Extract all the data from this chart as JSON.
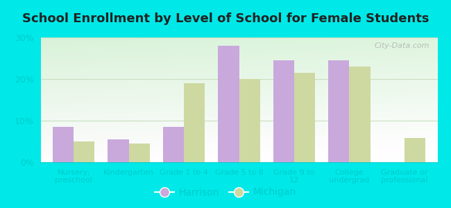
{
  "title": "School Enrollment by Level of School for Female Students",
  "categories": [
    "Nursery,\npreschool",
    "Kindergarten",
    "Grade 1 to 4",
    "Grade 5 to 8",
    "Grade 9 to\n12",
    "College\nundergrad",
    "Graduate or\nprofessional"
  ],
  "harrison": [
    8.5,
    5.5,
    8.5,
    28.0,
    24.5,
    24.5,
    0.0
  ],
  "michigan": [
    5.0,
    4.5,
    19.0,
    20.0,
    21.5,
    23.0,
    5.8
  ],
  "harrison_color": "#c9a8dc",
  "michigan_color": "#cdd9a0",
  "background_outer": "#00e8e8",
  "ylim": [
    0,
    30
  ],
  "yticks": [
    0,
    10,
    20,
    30
  ],
  "ytick_labels": [
    "0%",
    "10%",
    "20%",
    "30%"
  ],
  "title_fontsize": 13,
  "legend_labels": [
    "Harrison",
    "Michigan"
  ],
  "bar_width": 0.38,
  "watermark": "City-Data.com",
  "tick_label_color": "#00cccc",
  "grid_color": "#c8dfc0"
}
